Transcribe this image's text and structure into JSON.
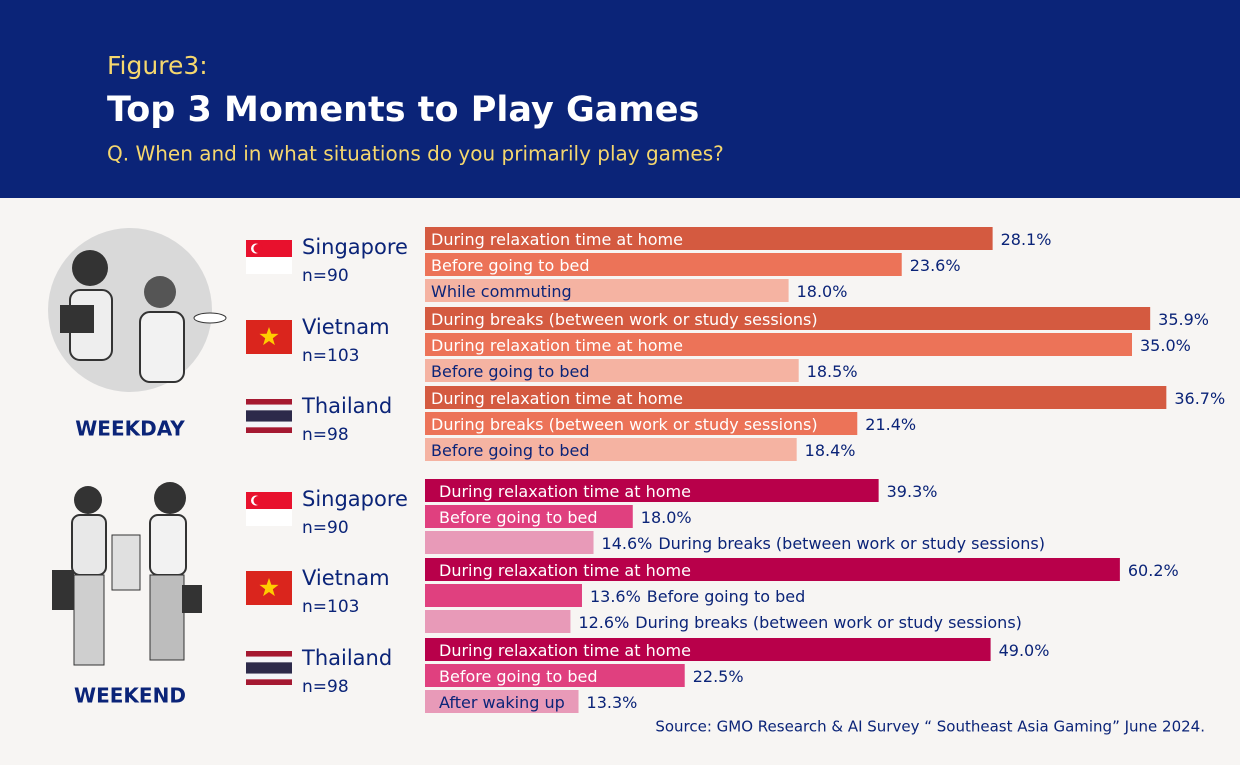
{
  "header": {
    "figure": "Figure3:",
    "title": "Top 3 Moments to Play Games",
    "subtitle": "Q. When and in what situations do you primarily play games?"
  },
  "sections": [
    "WEEKDAY",
    "WEEKEND"
  ],
  "source": "Source: GMO Research & AI Survey “ Southeast Asia Gaming” June 2024.",
  "chart_data": [
    {
      "type": "bar",
      "title": "Singapore",
      "subtitle": "n=90",
      "xlim": [
        0,
        40
      ],
      "colors": [
        "#d45a40",
        "#ec7358",
        "#f5b3a2"
      ],
      "categories": [
        "During relaxation time at home",
        "Before going to bed",
        "While commuting"
      ],
      "values": [
        28.1,
        23.6,
        18.0
      ],
      "value_labels": [
        "28.1%",
        "23.6%",
        "18.0%"
      ]
    },
    {
      "type": "bar",
      "title": "Vietnam",
      "subtitle": "n=103",
      "xlim": [
        0,
        40
      ],
      "colors": [
        "#d45a40",
        "#ec7358",
        "#f5b3a2"
      ],
      "categories": [
        "During breaks (between work or study sessions)",
        "During relaxation time at home",
        "Before going to bed"
      ],
      "values": [
        35.9,
        35.0,
        18.5
      ],
      "value_labels": [
        "35.9%",
        "35.0%",
        "18.5%"
      ]
    },
    {
      "type": "bar",
      "title": "Thailand",
      "subtitle": "n=98",
      "xlim": [
        0,
        40
      ],
      "colors": [
        "#d45a40",
        "#ec7358",
        "#f5b3a2"
      ],
      "categories": [
        "During relaxation time at home",
        "During breaks (between work or study sessions)",
        "Before going to bed"
      ],
      "values": [
        36.7,
        21.4,
        18.4
      ],
      "value_labels": [
        "36.7%",
        "21.4%",
        "18.4%"
      ]
    },
    {
      "type": "bar",
      "title": "Singapore",
      "subtitle": "n=90",
      "xlim": [
        0,
        70
      ],
      "colors": [
        "#b8004a",
        "#e0407f",
        "#e89ab8"
      ],
      "categories": [
        "During relaxation time at home",
        "Before going to bed",
        "During breaks (between work or study sessions)"
      ],
      "values": [
        39.3,
        18.0,
        14.6
      ],
      "value_labels": [
        "39.3%",
        "18.0%",
        "14.6%"
      ]
    },
    {
      "type": "bar",
      "title": "Vietnam",
      "subtitle": "n=103",
      "xlim": [
        0,
        70
      ],
      "colors": [
        "#b8004a",
        "#e0407f",
        "#e89ab8"
      ],
      "categories": [
        "During relaxation time at home",
        "Before going to bed",
        "During breaks (between work or study sessions)"
      ],
      "values": [
        60.2,
        13.6,
        12.6
      ],
      "value_labels": [
        "60.2%",
        "13.6%",
        "12.6%"
      ]
    },
    {
      "type": "bar",
      "title": "Thailand",
      "subtitle": "n=98",
      "xlim": [
        0,
        70
      ],
      "colors": [
        "#b8004a",
        "#e0407f",
        "#e89ab8"
      ],
      "categories": [
        "During relaxation time at home",
        "Before going to bed",
        "After waking up"
      ],
      "values": [
        49.0,
        22.5,
        13.3
      ],
      "value_labels": [
        "49.0%",
        "22.5%",
        "13.3%"
      ]
    }
  ]
}
